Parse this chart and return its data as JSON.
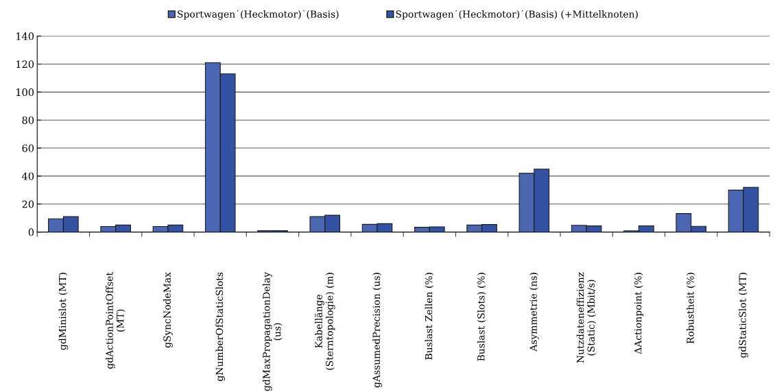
{
  "chart_data": {
    "type": "bar",
    "categories": [
      "gdMinislot (MT)",
      "gdActionPointOffset\n(MT)",
      "gSyncNodeMax",
      "gNumberOfStaticSlots",
      "gdMaxPropagationDelay\n(us)",
      "Kabellänge\n(Sterntopologie) (m)",
      "gAssumedPrecision (us)",
      "Buslast Zellen (%)",
      "Buslast (Slots) (%)",
      "Asymmetrie (ns)",
      "Nutzdateneffizienz\n(Static) (Mbit/s)",
      "ΔActionpoint (%)",
      "Robustheit (%)",
      "gdStaticSlot (MT)"
    ],
    "series": [
      {
        "name": "Sportwagen˙(Heckmotor)˙(Basis)",
        "color": "#4a66b0",
        "values": [
          9.5,
          4,
          4,
          121,
          1,
          11,
          5.5,
          3.4,
          5,
          42,
          4.8,
          0.9,
          13.2,
          30
        ]
      },
      {
        "name": "Sportwagen˙(Heckmotor)˙(Basis) (+Mittelknoten)",
        "color": "#3452a4",
        "values": [
          11,
          5,
          5,
          113,
          1,
          12,
          6,
          3.7,
          5.4,
          45,
          4.5,
          4.5,
          4.1,
          32
        ]
      }
    ],
    "ylim": [
      0,
      140
    ],
    "yticks": [
      0,
      20,
      40,
      60,
      80,
      100,
      120,
      140
    ],
    "grid": "y",
    "legend": "top"
  }
}
